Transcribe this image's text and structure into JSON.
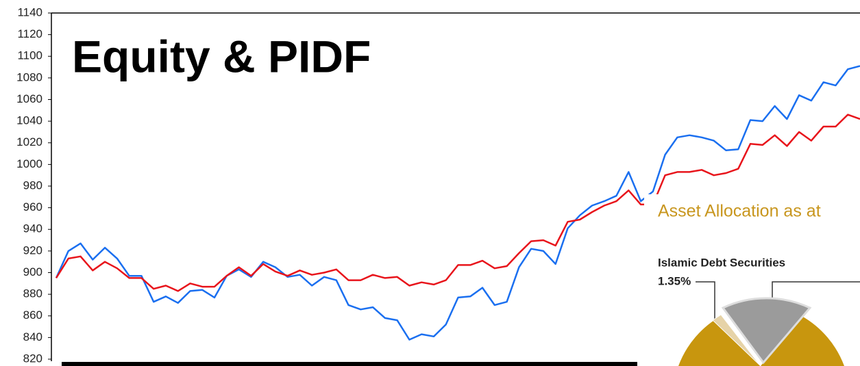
{
  "chart_data": {
    "type": "line",
    "title": "Equity & PIDF",
    "ylim": [
      820,
      1140
    ],
    "yticks": [
      820,
      840,
      860,
      880,
      900,
      920,
      940,
      960,
      980,
      1000,
      1020,
      1040,
      1060,
      1080,
      1100,
      1120,
      1140
    ],
    "series": [
      {
        "color": "#1a6ff0",
        "values": [
          895,
          920,
          927,
          912,
          923,
          913,
          897,
          897,
          873,
          878,
          872,
          883,
          884,
          877,
          897,
          903,
          896,
          910,
          905,
          896,
          898,
          888,
          896,
          893,
          870,
          866,
          868,
          858,
          856,
          838,
          843,
          841,
          852,
          877,
          878,
          886,
          870,
          873,
          905,
          922,
          920,
          908,
          941,
          953,
          962,
          966,
          971,
          993,
          966,
          975,
          1009,
          1025,
          1027,
          1025,
          1022,
          1013,
          1014,
          1041,
          1040,
          1054,
          1042,
          1064,
          1059,
          1076,
          1073,
          1088,
          1091
        ]
      },
      {
        "color": "#e8141b",
        "values": [
          895,
          913,
          915,
          902,
          910,
          904,
          895,
          895,
          885,
          888,
          883,
          890,
          887,
          887,
          897,
          905,
          897,
          908,
          901,
          897,
          902,
          898,
          900,
          903,
          893,
          893,
          898,
          895,
          896,
          888,
          891,
          889,
          893,
          907,
          907,
          911,
          904,
          906,
          918,
          929,
          930,
          925,
          947,
          949,
          956,
          962,
          966,
          976,
          963,
          963,
          990,
          993,
          993,
          995,
          990,
          992,
          996,
          1019,
          1018,
          1027,
          1017,
          1030,
          1022,
          1035,
          1035,
          1046,
          1042
        ]
      }
    ]
  },
  "inset": {
    "title": "Asset Allocation as at",
    "label": "Islamic Debt Securities",
    "label_value": "1.35%"
  }
}
